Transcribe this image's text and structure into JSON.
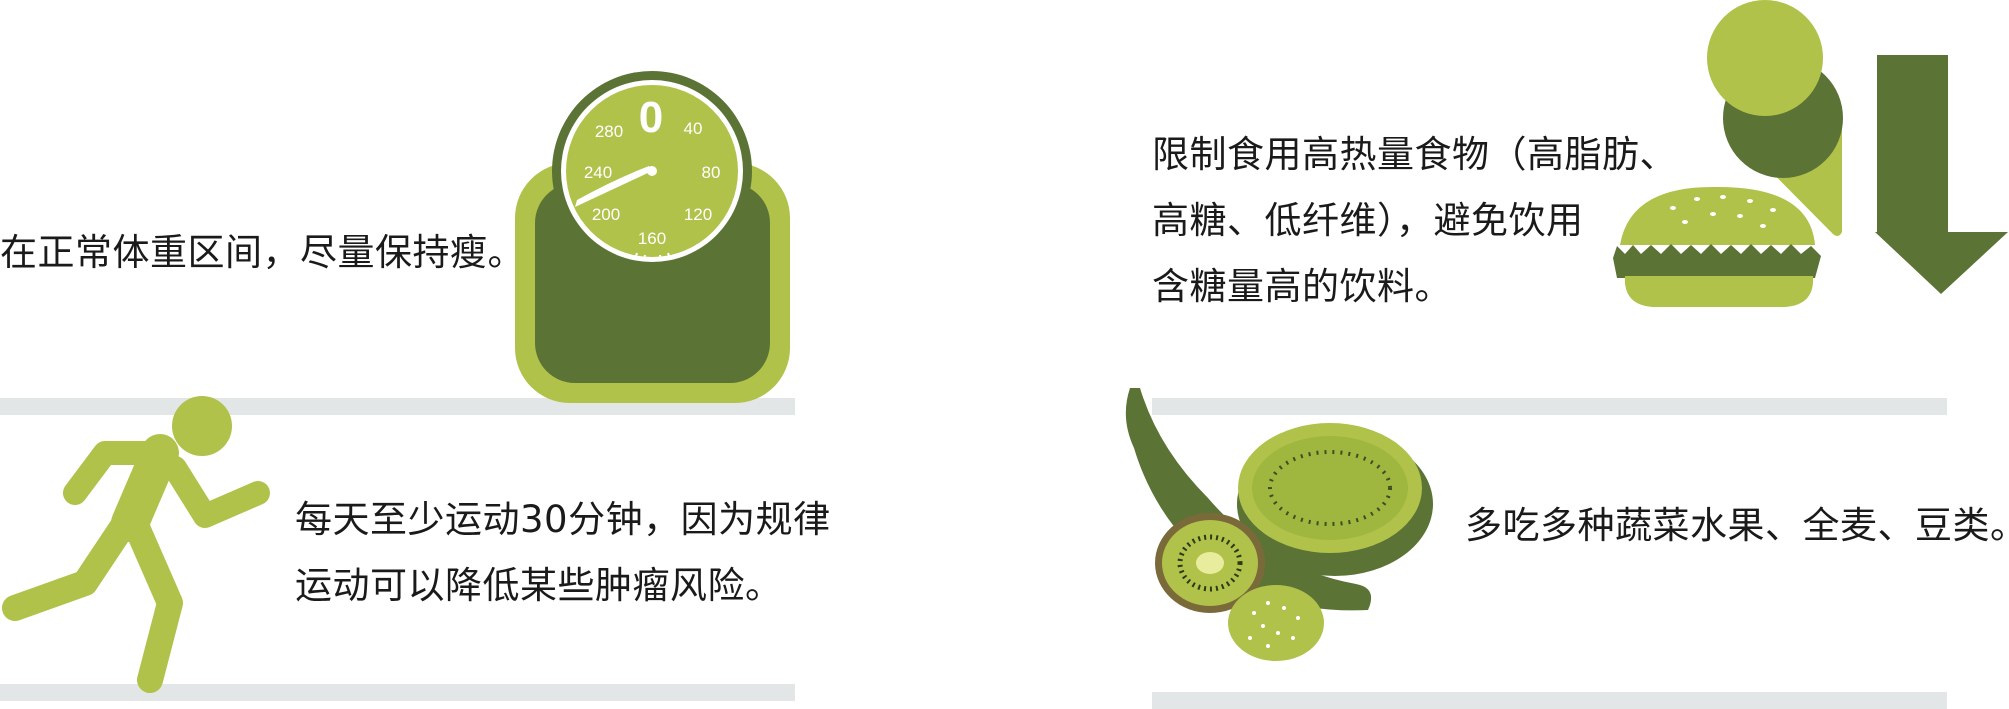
{
  "colors": {
    "light_green": "#b0c24a",
    "dark_green": "#5b7435",
    "divider_gray": "#e3e6e7",
    "text": "#1a1a1a"
  },
  "tips": {
    "weight": {
      "lines": [
        "在正常体重区间，尽量保持瘦。"
      ],
      "icon": "bathroom-scale-icon"
    },
    "exercise": {
      "lines": [
        "每天至少运动30分钟，因为规律",
        "运动可以降低某些肿瘤风险。"
      ],
      "icon": "running-person-icon"
    },
    "diet": {
      "lines": [
        "限制食用高热量食物（高脂肪、",
        "高糖、低纤维），避免饮用",
        "含糖量高的饮料。"
      ],
      "icon": "burger-icecream-down-arrow-icon"
    },
    "produce": {
      "lines": [
        "多吃多种蔬菜水果、全麦、豆类。"
      ],
      "icon": "fruit-vegetable-icon"
    }
  },
  "scale_dial": {
    "labels": [
      "0",
      "40",
      "80",
      "120",
      "160",
      "200",
      "240",
      "280"
    ]
  }
}
